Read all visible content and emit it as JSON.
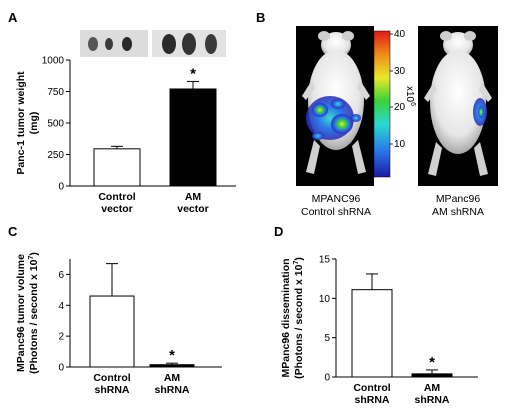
{
  "panels": {
    "A": "A",
    "B": "B",
    "C": "C",
    "D": "D"
  },
  "panel_b": {
    "colorbar_ticks": [
      "40",
      "30",
      "20",
      "10"
    ],
    "colorbar_unit": "x10",
    "colorbar_unit_exp": "6",
    "left_caption": [
      "MPANC96",
      "Control shRNA"
    ],
    "right_caption": [
      "MPanc96",
      "AM shRNA"
    ]
  },
  "chart_data": [
    {
      "type": "bar",
      "panel": "A",
      "categories": [
        [
          "Control",
          "vector"
        ],
        [
          "AM",
          "vector"
        ]
      ],
      "values": [
        295,
        770
      ],
      "errors": [
        20,
        60
      ],
      "bar_colors": [
        "#ffffff",
        "#000000"
      ],
      "ylabel": [
        "Panc-1 tumor weight",
        "(mg)"
      ],
      "ylim": [
        0,
        1000
      ],
      "yticks": [
        0,
        250,
        500,
        750,
        1000
      ],
      "significance": [
        "",
        "*"
      ],
      "grid": false
    },
    {
      "type": "bar",
      "panel": "C",
      "categories": [
        [
          "Control",
          "shRNA"
        ],
        [
          "AM",
          "shRNA"
        ]
      ],
      "values": [
        4.6,
        0.15
      ],
      "errors": [
        2.1,
        0.1
      ],
      "bar_colors": [
        "#ffffff",
        "#000000"
      ],
      "ylabel": [
        "MPanc96 tumor volume",
        "(Photons / second x 10",
        "7",
        ")"
      ],
      "ylim": [
        0,
        7
      ],
      "yticks": [
        0,
        2,
        4,
        6
      ],
      "significance": [
        "",
        "*"
      ],
      "grid": false
    },
    {
      "type": "bar",
      "panel": "D",
      "categories": [
        [
          "Control",
          "shRNA"
        ],
        [
          "AM",
          "shRNA"
        ]
      ],
      "values": [
        11.1,
        0.4
      ],
      "errors": [
        2.0,
        0.5
      ],
      "bar_colors": [
        "#ffffff",
        "#000000"
      ],
      "ylabel": [
        "MPanc96 dissemination",
        "(Photons / second x 10",
        "7",
        ")"
      ],
      "ylim": [
        0,
        15
      ],
      "yticks": [
        0,
        5,
        10,
        15
      ],
      "significance": [
        "",
        "*"
      ],
      "grid": false
    }
  ]
}
